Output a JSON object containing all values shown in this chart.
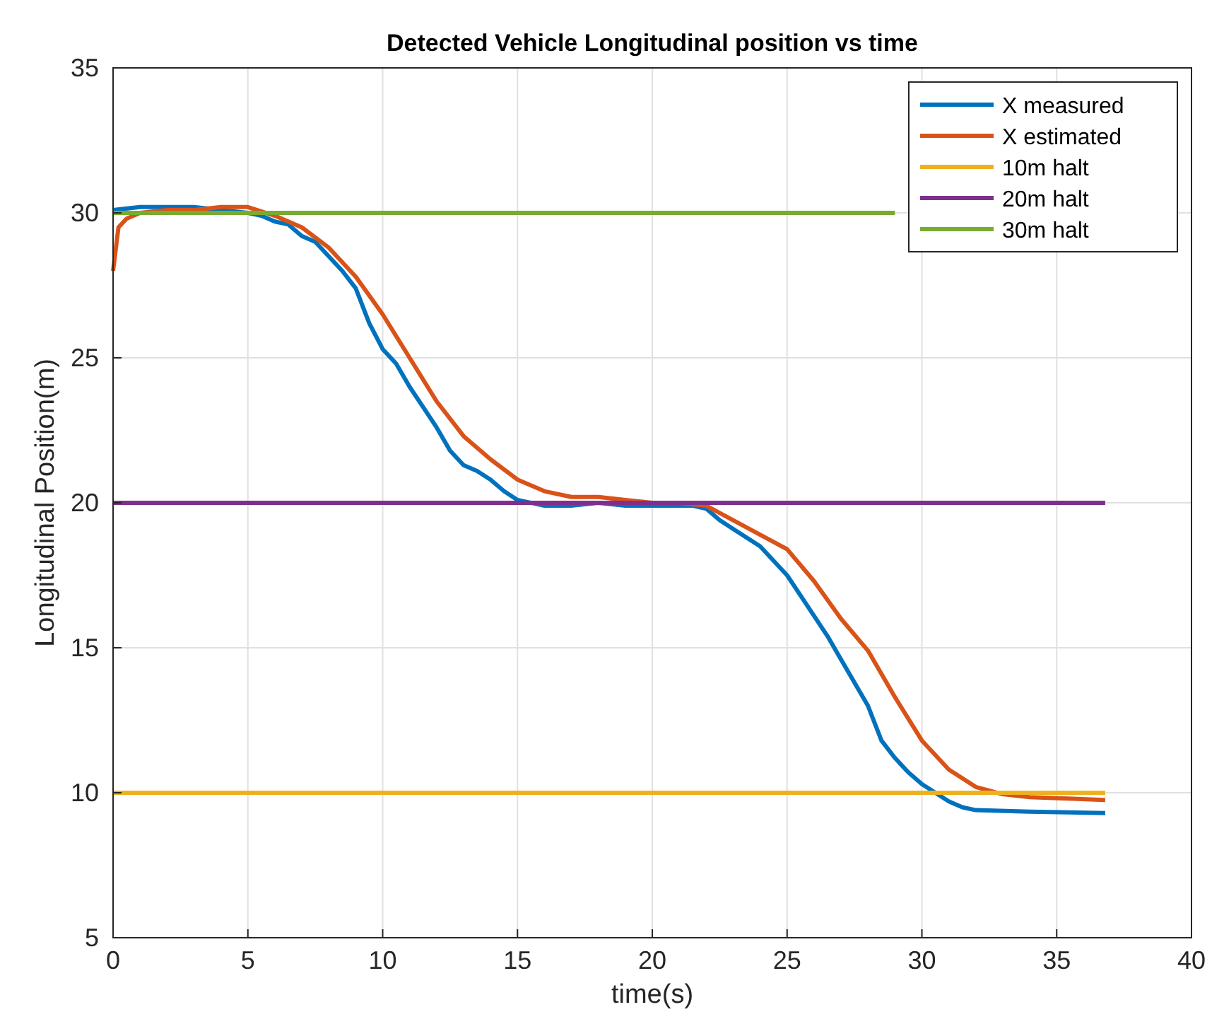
{
  "chart_data": {
    "type": "line",
    "title": "Detected Vehicle Longitudinal position vs time",
    "xlabel": "time(s)",
    "ylabel": "Longitudinal Position(m)",
    "xlim": [
      0,
      40
    ],
    "xticks": [
      0,
      5,
      10,
      15,
      20,
      25,
      30,
      35,
      40
    ],
    "ylim": [
      5,
      35
    ],
    "yticks": [
      5,
      10,
      15,
      20,
      25,
      30,
      35
    ],
    "grid": true,
    "legend": "top right",
    "line_style": "solid",
    "marker": "none",
    "series": [
      {
        "name": "X measured",
        "color": "#0072bd",
        "x": [
          0,
          1,
          2,
          3,
          4,
          5,
          5.5,
          6,
          6.5,
          7,
          7.5,
          8,
          8.5,
          9,
          9.5,
          10,
          10.5,
          11,
          11.5,
          12,
          12.5,
          13,
          13.5,
          14,
          14.5,
          15,
          16,
          17,
          18,
          19,
          20,
          21,
          21.5,
          22,
          22.5,
          23,
          24,
          24.5,
          25,
          25.5,
          26,
          26.5,
          27,
          27.5,
          28,
          28.5,
          29,
          29.5,
          30,
          30.5,
          31,
          31.5,
          32,
          34,
          36.8
        ],
        "values": [
          30.1,
          30.2,
          30.2,
          30.2,
          30.1,
          30,
          29.9,
          29.7,
          29.6,
          29.2,
          29,
          28.5,
          28,
          27.4,
          26.2,
          25.3,
          24.8,
          24,
          23.3,
          22.6,
          21.8,
          21.3,
          21.1,
          20.8,
          20.4,
          20.1,
          19.9,
          19.9,
          20,
          19.9,
          19.9,
          19.9,
          19.9,
          19.8,
          19.4,
          19.1,
          18.5,
          18,
          17.5,
          16.8,
          16.1,
          15.4,
          14.6,
          13.8,
          13,
          11.8,
          11.2,
          10.7,
          10.3,
          10,
          9.7,
          9.5,
          9.4,
          9.35,
          9.3
        ]
      },
      {
        "name": "X estimated",
        "color": "#d95319",
        "x": [
          0,
          0.2,
          0.5,
          1,
          2,
          3,
          4,
          5,
          6,
          7,
          8,
          9,
          10,
          11,
          12,
          13,
          14,
          15,
          16,
          17,
          18,
          19,
          20,
          21,
          22,
          23,
          24,
          25,
          26,
          27,
          28,
          29,
          30,
          31,
          32,
          33,
          34,
          36.8
        ],
        "values": [
          28,
          29.5,
          29.8,
          30,
          30.1,
          30.1,
          30.2,
          30.2,
          29.9,
          29.5,
          28.8,
          27.8,
          26.5,
          25,
          23.5,
          22.3,
          21.5,
          20.8,
          20.4,
          20.2,
          20.2,
          20.1,
          20,
          20,
          19.9,
          19.4,
          18.9,
          18.4,
          17.3,
          16,
          14.9,
          13.3,
          11.8,
          10.8,
          10.2,
          9.95,
          9.85,
          9.75
        ]
      },
      {
        "name": "10m halt",
        "color": "#edb120",
        "x": [
          0,
          36.8
        ],
        "values": [
          10,
          10
        ]
      },
      {
        "name": "20m halt",
        "color": "#7e2f8e",
        "x": [
          0,
          36.8
        ],
        "values": [
          20,
          20
        ]
      },
      {
        "name": "30m halt",
        "color": "#77ac30",
        "x": [
          0,
          29
        ],
        "values": [
          30,
          30
        ]
      }
    ]
  }
}
